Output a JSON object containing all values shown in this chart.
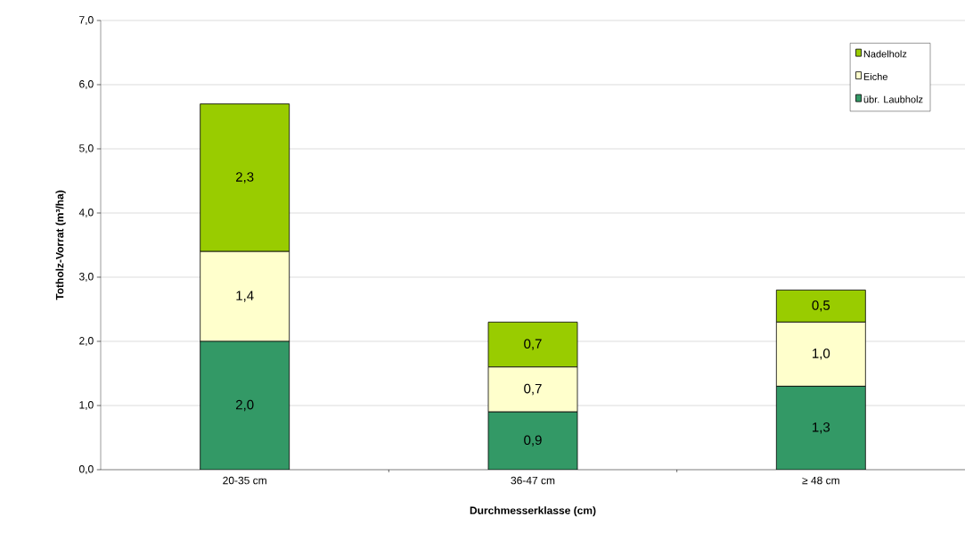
{
  "chart_data": {
    "type": "bar",
    "stacked": true,
    "xlabel": "Durchmesserklasse (cm)",
    "ylabel": "Totholz-Vorrat (m³/ha)",
    "categories": [
      "20-35 cm",
      "36-47 cm",
      "≥ 48 cm"
    ],
    "series": [
      {
        "name": "übr. Laubholz",
        "color": "#339966",
        "values": [
          2.0,
          0.9,
          1.3
        ],
        "value_labels": [
          "2,0",
          "0,9",
          "1,3"
        ]
      },
      {
        "name": "Eiche",
        "color": "#ffffcc",
        "values": [
          1.4,
          0.7,
          1.0
        ],
        "value_labels": [
          "1,4",
          "0,7",
          "1,0"
        ]
      },
      {
        "name": "Nadelholz",
        "color": "#99cc00",
        "values": [
          2.3,
          0.7,
          0.5
        ],
        "value_labels": [
          "2,3",
          "0,7",
          "0,5"
        ]
      }
    ],
    "ylim": [
      0,
      7
    ],
    "yticks": [
      {
        "value": 0,
        "label": "0,0"
      },
      {
        "value": 1,
        "label": "1,0"
      },
      {
        "value": 2,
        "label": "2,0"
      },
      {
        "value": 3,
        "label": "3,0"
      },
      {
        "value": 4,
        "label": "4,0"
      },
      {
        "value": 5,
        "label": "5,0"
      },
      {
        "value": 6,
        "label": "6,0"
      },
      {
        "value": 7,
        "label": "7,0"
      }
    ],
    "grid": "y",
    "legend": "top right"
  }
}
